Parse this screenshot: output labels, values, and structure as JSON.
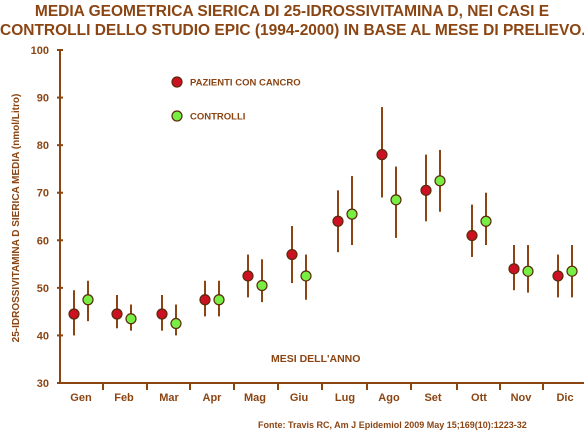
{
  "chart_data": {
    "type": "scatter",
    "title_line1": "MEDIA GEOMETRICA SIERICA DI 25-IDROSSIVITAMINA D, NEI CASI E",
    "title_line2": "CONTROLLI DELLO STUDIO EPIC (1994-2000) IN BASE AL MESE DI PRELIEVO.",
    "ylabel": "25-IDROSSIVITAMINA D SIERICA MEDIA (nmol/Litro)",
    "annotation": "MESI DELL'ANNO",
    "source": "Fonte: Travis RC, Am J Epidemiol 2009 May 15;169(10):1223-32",
    "categories": [
      "Gen",
      "Feb",
      "Mar",
      "Apr",
      "Mag",
      "Giu",
      "Lug",
      "Ago",
      "Set",
      "Ott",
      "Nov",
      "Dic"
    ],
    "ylim": [
      30,
      100
    ],
    "yticks": [
      "30",
      "40",
      "50",
      "60",
      "70",
      "80",
      "90",
      "100"
    ],
    "legend_position": "top-left",
    "series": [
      {
        "name": "PAZIENTI CON CANCRO",
        "color": "#cc1122",
        "values": [
          44.5,
          44.5,
          44.5,
          47.5,
          52.5,
          57,
          64,
          78,
          70.5,
          61,
          54,
          52.5
        ],
        "lower": [
          40,
          41.5,
          41,
          44,
          48,
          51,
          57.5,
          69,
          64,
          56.5,
          49.5,
          48
        ],
        "upper": [
          49.5,
          48.5,
          48.5,
          51.5,
          57,
          63,
          70.5,
          88,
          78,
          67.5,
          59,
          57
        ]
      },
      {
        "name": "CONTROLLI",
        "color": "#77ee44",
        "values": [
          47.5,
          43.5,
          42.5,
          47.5,
          50.5,
          52.5,
          65.5,
          68.5,
          72.5,
          64,
          53.5,
          53.5
        ],
        "lower": [
          43,
          41,
          40,
          44,
          47,
          47.5,
          59,
          60.5,
          66,
          59,
          49,
          48
        ],
        "upper": [
          51.5,
          46.5,
          46.5,
          51.5,
          56,
          57,
          73.5,
          75.5,
          79,
          70,
          59,
          59
        ]
      }
    ],
    "colors": {
      "text": "#8b4513",
      "axis": "#8b4513",
      "errorbar": "#8b4513"
    }
  }
}
